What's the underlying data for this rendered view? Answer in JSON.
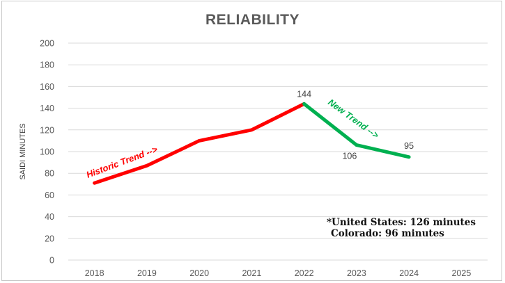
{
  "chart_data": {
    "type": "line",
    "title": "RELIABILITY",
    "xlabel": "",
    "ylabel": "SAIDI MINUTES",
    "categories": [
      "2018",
      "2019",
      "2020",
      "2021",
      "2022",
      "2023",
      "2024",
      "2025"
    ],
    "ylim": [
      0,
      200
    ],
    "yticks": [
      0,
      20,
      40,
      60,
      80,
      100,
      120,
      140,
      160,
      180,
      200
    ],
    "grid": true,
    "series": [
      {
        "name": "Historic Trend -->",
        "color": "#ff0000",
        "points": [
          {
            "x": "2018",
            "y": 71
          },
          {
            "x": "2019",
            "y": 87
          },
          {
            "x": "2020",
            "y": 110
          },
          {
            "x": "2021",
            "y": 120
          },
          {
            "x": "2022",
            "y": 144
          }
        ]
      },
      {
        "name": "New Trend -->",
        "color": "#00b050",
        "points": [
          {
            "x": "2022",
            "y": 144
          },
          {
            "x": "2023",
            "y": 106
          },
          {
            "x": "2024",
            "y": 95
          }
        ]
      }
    ],
    "data_labels": [
      {
        "x": "2022",
        "y": 144,
        "text": "144"
      },
      {
        "x": "2023",
        "y": 106,
        "text": "106"
      },
      {
        "x": "2024",
        "y": 95,
        "text": "95"
      }
    ],
    "annotations": [
      "*United States: 126 minutes",
      "Colorado: 96 minutes"
    ]
  }
}
